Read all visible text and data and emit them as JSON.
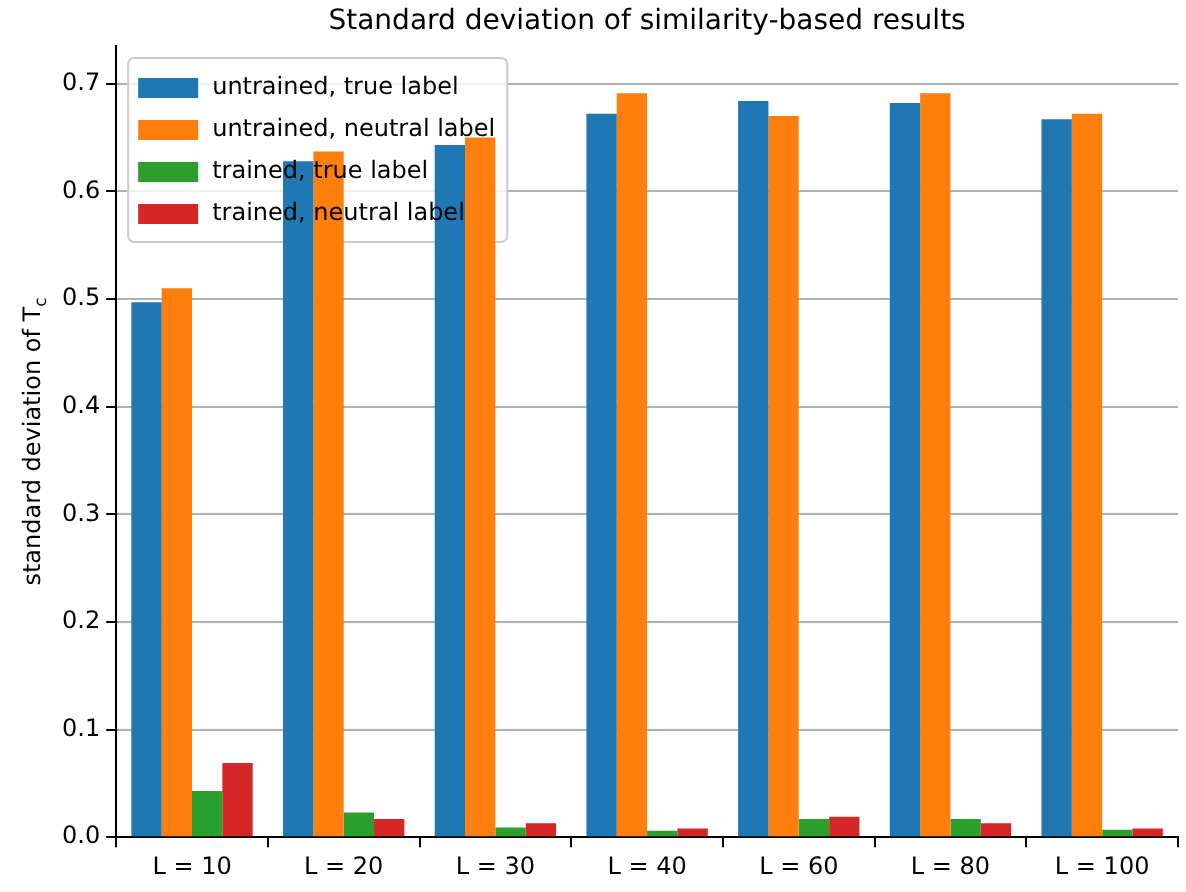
{
  "chart_data": {
    "type": "bar",
    "title": "Standard deviation of similarity-based results",
    "ylabel": "standard deviation of T$_{c}$",
    "categories": [
      "L = 10",
      "L = 20",
      "L = 30",
      "L = 40",
      "L = 60",
      "L = 80",
      "L = 100"
    ],
    "series": [
      {
        "name": "untrained, true label",
        "color": "#1f77b4",
        "values": [
          0.497,
          0.628,
          0.643,
          0.672,
          0.684,
          0.682,
          0.667
        ]
      },
      {
        "name": "untrained, neutral label",
        "color": "#ff7f0e",
        "values": [
          0.51,
          0.637,
          0.65,
          0.691,
          0.67,
          0.691,
          0.672
        ]
      },
      {
        "name": "trained, true label",
        "color": "#2ca02c",
        "values": [
          0.043,
          0.023,
          0.009,
          0.006,
          0.017,
          0.017,
          0.007
        ]
      },
      {
        "name": "trained, neutral label",
        "color": "#d62728",
        "values": [
          0.069,
          0.017,
          0.013,
          0.008,
          0.019,
          0.013,
          0.008
        ]
      }
    ],
    "ylim": [
      0,
      0.735
    ],
    "yticks": [
      {
        "value": 0,
        "label": "0.0"
      },
      {
        "value": 0.1,
        "label": "0.1"
      },
      {
        "value": 0.2,
        "label": "0.2"
      },
      {
        "value": 0.3,
        "label": "0.3"
      },
      {
        "value": 0.4,
        "label": "0.4"
      },
      {
        "value": 0.5,
        "label": "0.5"
      },
      {
        "value": 0.6,
        "label": "0.6"
      },
      {
        "value": 0.7,
        "label": "0.7"
      }
    ],
    "grid": "y",
    "legend": "top left"
  }
}
